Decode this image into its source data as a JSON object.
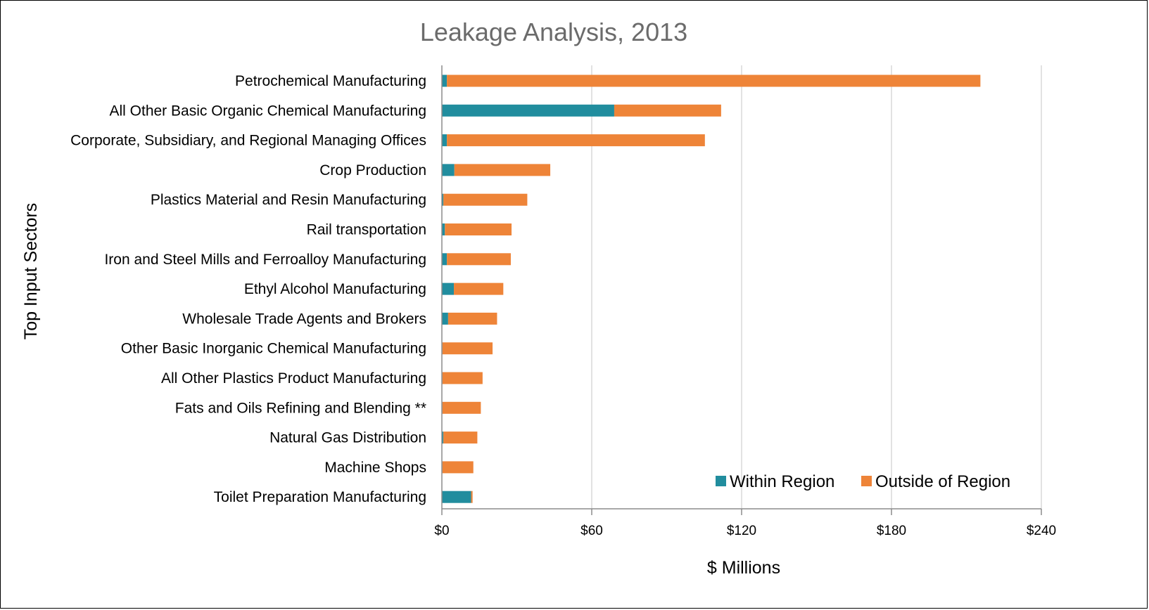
{
  "chart_data": {
    "type": "bar",
    "orientation": "horizontal",
    "stacked": true,
    "title": "Leakage Analysis, 2013",
    "xlabel": "$ Millions",
    "ylabel": "Top Input Sectors",
    "xlim": [
      0,
      240
    ],
    "xticks": [
      0,
      60,
      120,
      180,
      240
    ],
    "xtick_labels": [
      "$0",
      "$60",
      "$120",
      "$180",
      "$240"
    ],
    "grid": "vertical",
    "legend_position": "bottom-right",
    "categories": [
      "Petrochemical Manufacturing",
      "All Other Basic Organic Chemical Manufacturing",
      "Corporate, Subsidiary, and Regional Managing Offices",
      "Crop Production",
      "Plastics Material and Resin Manufacturing",
      "Rail transportation",
      "Iron and Steel Mills and Ferroalloy Manufacturing",
      "Ethyl Alcohol Manufacturing",
      "Wholesale Trade Agents and Brokers",
      "Other Basic Inorganic Chemical Manufacturing",
      "All Other Plastics Product Manufacturing",
      "Fats and Oils Refining and Blending **",
      "Natural Gas Distribution",
      "Machine Shops",
      "Toilet Preparation Manufacturing"
    ],
    "series": [
      {
        "name": "Within Region",
        "color": "#218d9e",
        "values": [
          2.0,
          69.0,
          2.0,
          5.0,
          0.6,
          1.2,
          2.0,
          4.8,
          2.5,
          0.2,
          0.2,
          0.2,
          0.6,
          0.2,
          11.7
        ]
      },
      {
        "name": "Outside of Region",
        "color": "#ee8438",
        "values": [
          213.6,
          42.8,
          103.3,
          38.4,
          33.6,
          26.7,
          25.6,
          19.8,
          19.6,
          20.1,
          16.1,
          15.4,
          13.6,
          12.4,
          0.6
        ]
      }
    ]
  }
}
